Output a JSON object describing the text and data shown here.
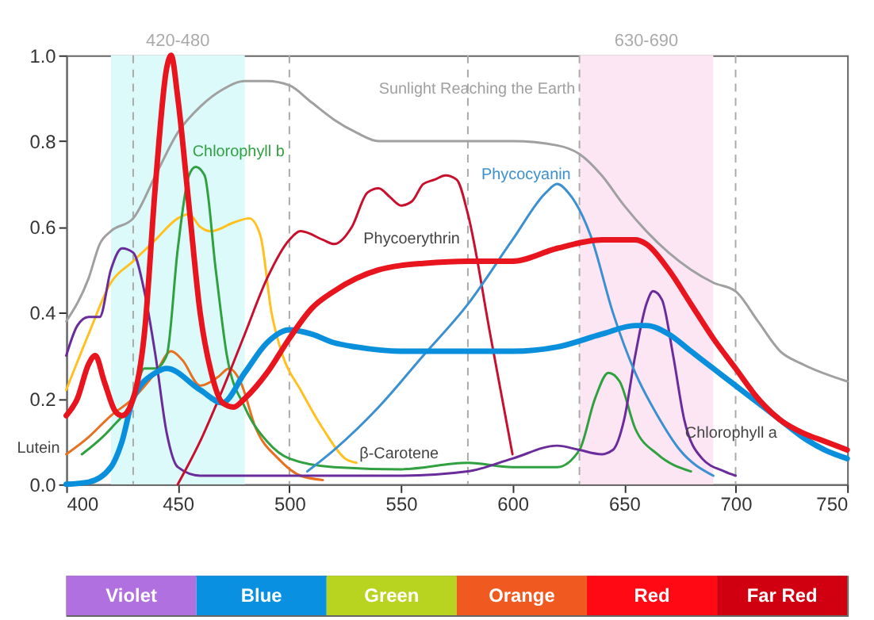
{
  "chart_data": [
    {
      "type": "line",
      "xlim": [
        400,
        750
      ],
      "ylim": [
        0,
        1.0
      ],
      "xticks": [
        400,
        450,
        500,
        550,
        600,
        650,
        700,
        750
      ],
      "yticks": [
        {
          "value": 0,
          "label": "0.0"
        },
        0.2,
        0.4,
        0.6,
        0.8,
        {
          "value": 1,
          "label": "1.0"
        }
      ],
      "grid": false,
      "marker": "none",
      "line_style": "solid",
      "bands": [
        {
          "axis": "x",
          "from": 420,
          "to": 480,
          "label": "420-480",
          "color": "#dcfafa"
        },
        {
          "axis": "x",
          "from": 630,
          "to": 690,
          "label": "630-690",
          "color": "#fce6f4"
        }
      ],
      "ref_lines": [
        {
          "axis": "x",
          "value": 430,
          "color": "#aaaaaa",
          "line_style": "dashed"
        },
        {
          "axis": "x",
          "value": 500,
          "color": "#aaaaaa",
          "line_style": "dashed"
        },
        {
          "axis": "x",
          "value": 580,
          "color": "#aaaaaa",
          "line_style": "dashed"
        },
        {
          "axis": "x",
          "value": 630,
          "color": "#aaaaaa",
          "line_style": "dashed"
        },
        {
          "axis": "x",
          "value": 700,
          "color": "#aaaaaa",
          "line_style": "dashed"
        }
      ],
      "series": [
        {
          "name": "Sunlight Reaching the Earth",
          "color": "#a0a0a0",
          "x": [
            400,
            410,
            415,
            420,
            430,
            440,
            450,
            460,
            470,
            480,
            490,
            500,
            510,
            520,
            530,
            540,
            560,
            600,
            620,
            630,
            640,
            650,
            660,
            670,
            680,
            690,
            700,
            710,
            720,
            730,
            750
          ],
          "values": [
            0.38,
            0.48,
            0.56,
            0.59,
            0.62,
            0.72,
            0.82,
            0.88,
            0.92,
            0.94,
            0.94,
            0.93,
            0.89,
            0.85,
            0.82,
            0.8,
            0.8,
            0.8,
            0.79,
            0.77,
            0.72,
            0.65,
            0.59,
            0.54,
            0.5,
            0.47,
            0.45,
            0.38,
            0.31,
            0.28,
            0.24
          ]
        },
        {
          "name": "β-Carotene",
          "color": "#ffc020",
          "x": [
            400,
            410,
            420,
            430,
            440,
            450,
            455,
            460,
            465,
            475,
            482,
            487,
            492,
            497,
            505,
            515,
            525,
            530
          ],
          "values": [
            0.22,
            0.35,
            0.47,
            0.52,
            0.57,
            0.62,
            0.63,
            0.6,
            0.59,
            0.61,
            0.62,
            0.58,
            0.4,
            0.3,
            0.22,
            0.13,
            0.06,
            0.05
          ]
        },
        {
          "name": "Lutein",
          "color": "#e87020",
          "x": [
            400,
            410,
            420,
            430,
            440,
            447,
            452,
            460,
            468,
            473,
            478,
            485,
            495,
            505,
            515
          ],
          "values": [
            0.07,
            0.11,
            0.16,
            0.2,
            0.26,
            0.31,
            0.29,
            0.23,
            0.25,
            0.27,
            0.24,
            0.13,
            0.06,
            0.02,
            0.01
          ]
        },
        {
          "name": "Chlorophyll b",
          "color": "#30a040",
          "x": [
            407,
            420,
            430,
            435,
            440,
            445,
            450,
            455,
            458,
            462,
            467,
            472,
            480,
            490,
            500,
            520,
            550,
            580,
            600,
            620,
            630,
            637,
            643,
            648,
            655,
            665,
            680
          ],
          "values": [
            0.07,
            0.13,
            0.2,
            0.27,
            0.27,
            0.3,
            0.55,
            0.72,
            0.74,
            0.72,
            0.5,
            0.3,
            0.18,
            0.1,
            0.06,
            0.04,
            0.035,
            0.05,
            0.04,
            0.04,
            0.08,
            0.2,
            0.26,
            0.24,
            0.13,
            0.07,
            0.03
          ]
        },
        {
          "name": "Chlorophyll a",
          "color": "#6a2c9a",
          "x": [
            400,
            405,
            410,
            415,
            420,
            425,
            430,
            435,
            440,
            445,
            450,
            460,
            500,
            550,
            580,
            600,
            620,
            630,
            640,
            645,
            650,
            655,
            660,
            663,
            667,
            672,
            677,
            685,
            695,
            700
          ],
          "values": [
            0.3,
            0.37,
            0.39,
            0.39,
            0.5,
            0.55,
            0.54,
            0.45,
            0.3,
            0.12,
            0.04,
            0.02,
            0.02,
            0.02,
            0.03,
            0.06,
            0.09,
            0.08,
            0.07,
            0.08,
            0.15,
            0.3,
            0.42,
            0.45,
            0.43,
            0.3,
            0.15,
            0.06,
            0.03,
            0.02
          ]
        },
        {
          "name": "Phycoerythrin",
          "color": "#c8102e",
          "x": [
            450,
            460,
            470,
            480,
            490,
            500,
            505,
            515,
            520,
            528,
            535,
            540,
            545,
            550,
            555,
            560,
            565,
            570,
            575,
            580,
            590,
            600
          ],
          "values": [
            0.0,
            0.1,
            0.22,
            0.35,
            0.48,
            0.57,
            0.59,
            0.57,
            0.56,
            0.6,
            0.68,
            0.69,
            0.67,
            0.65,
            0.66,
            0.7,
            0.71,
            0.72,
            0.71,
            0.63,
            0.35,
            0.07
          ]
        },
        {
          "name": "Phycocyanin",
          "color": "#3a90d0",
          "x": [
            508,
            520,
            540,
            560,
            580,
            600,
            615,
            620,
            625,
            635,
            645,
            655,
            665,
            675,
            690
          ],
          "values": [
            0.03,
            0.08,
            0.18,
            0.3,
            0.42,
            0.57,
            0.68,
            0.7,
            0.68,
            0.58,
            0.4,
            0.26,
            0.16,
            0.08,
            0.02
          ]
        },
        {
          "color": "#0a8fdc",
          "x": [
            400,
            410,
            420,
            425,
            430,
            440,
            445,
            460,
            470,
            480,
            490,
            500,
            510,
            520,
            530,
            550,
            580,
            600,
            620,
            640,
            655,
            660,
            670,
            680,
            690,
            700,
            710,
            720,
            730,
            740,
            750
          ],
          "values": [
            0.0,
            0.005,
            0.04,
            0.1,
            0.2,
            0.26,
            0.27,
            0.22,
            0.19,
            0.26,
            0.33,
            0.36,
            0.35,
            0.33,
            0.32,
            0.31,
            0.31,
            0.31,
            0.32,
            0.35,
            0.37,
            0.37,
            0.35,
            0.31,
            0.27,
            0.23,
            0.19,
            0.15,
            0.11,
            0.08,
            0.06
          ]
        },
        {
          "color": "#e8141e",
          "x": [
            400,
            405,
            410,
            413,
            417,
            422,
            425,
            430,
            435,
            440,
            445,
            447,
            450,
            455,
            460,
            465,
            470,
            475,
            480,
            490,
            500,
            510,
            520,
            530,
            540,
            550,
            560,
            580,
            600,
            620,
            640,
            655,
            660,
            670,
            680,
            690,
            700,
            710,
            720,
            730,
            740,
            750
          ],
          "values": [
            0.16,
            0.2,
            0.28,
            0.3,
            0.24,
            0.17,
            0.16,
            0.2,
            0.35,
            0.7,
            0.97,
            1.0,
            0.9,
            0.65,
            0.4,
            0.26,
            0.19,
            0.18,
            0.2,
            0.26,
            0.34,
            0.41,
            0.45,
            0.48,
            0.5,
            0.51,
            0.515,
            0.52,
            0.52,
            0.55,
            0.57,
            0.57,
            0.56,
            0.5,
            0.42,
            0.34,
            0.27,
            0.2,
            0.15,
            0.12,
            0.1,
            0.08
          ]
        }
      ]
    },
    {
      "type": "other",
      "categories": [
        "Violet",
        "Blue",
        "Green",
        "Orange",
        "Red",
        "Far Red"
      ],
      "colors": [
        "#b070e0",
        "#0a90e0",
        "#b8d420",
        "#f05a20",
        "#ff0a14",
        "#d00010"
      ]
    }
  ]
}
